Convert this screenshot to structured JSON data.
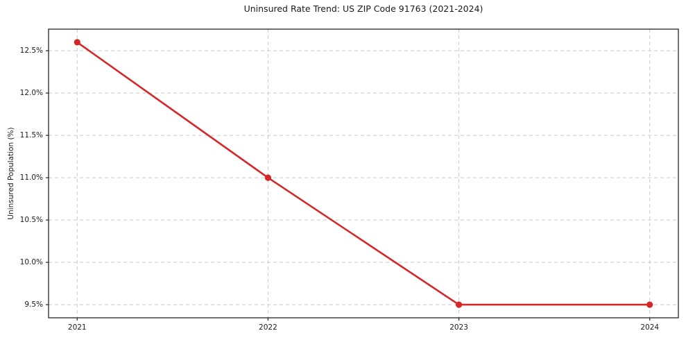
{
  "figure": {
    "title": "Uninsured Rate Trend: US ZIP Code 91763 (2021-2024)"
  },
  "chart_data": {
    "type": "line",
    "title": "Uninsured Rate Trend: US ZIP Code 91763 (2021-2024)",
    "xlabel": "",
    "ylabel": "Uninsured Population (%)",
    "x": [
      2021,
      2022,
      2023,
      2024
    ],
    "xtick_labels": [
      "2021",
      "2022",
      "2023",
      "2024"
    ],
    "series": [
      {
        "name": "Uninsured Population (%)",
        "values": [
          12.6,
          11.0,
          9.5,
          9.5
        ]
      }
    ],
    "yticks": [
      9.5,
      10.0,
      10.5,
      11.0,
      11.5,
      12.0,
      12.5
    ],
    "ytick_labels": [
      "9.5%",
      "10.0%",
      "10.5%",
      "11.0%",
      "11.5%",
      "12.0%",
      "12.5%"
    ],
    "xlim": [
      2020.85,
      2024.15
    ],
    "ylim": [
      9.345,
      12.755
    ],
    "grid": true,
    "grid_style": "dashed",
    "legend": false,
    "marker": "circle",
    "line_color": "#d62728",
    "grid_color": "#c9c9c9",
    "axis_color": "#222222",
    "text_color": "#1a1a1a",
    "background": "#ffffff"
  }
}
